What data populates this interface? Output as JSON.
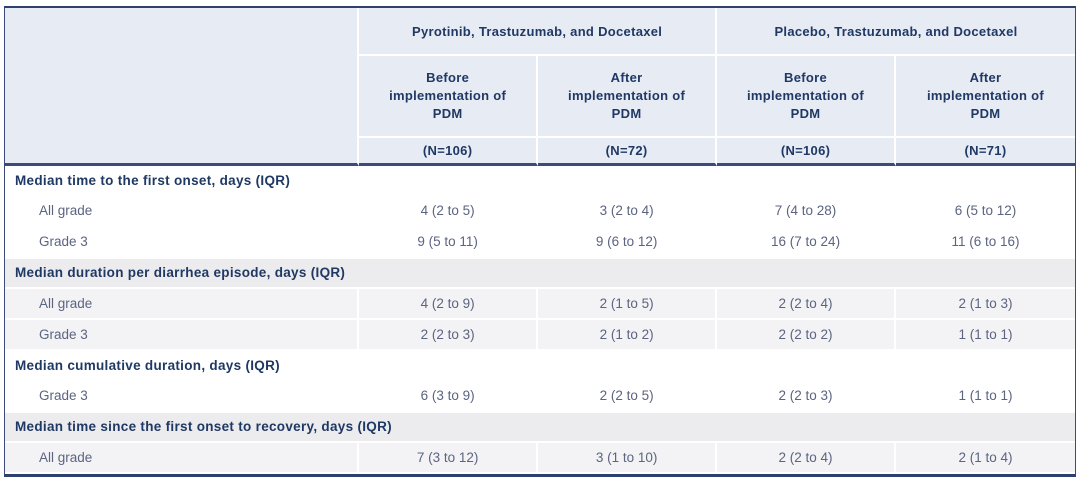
{
  "chart_data": {
    "type": "table",
    "column_groups": [
      "Pyrotinib, Trastuzumab, and Docetaxel",
      "Placebo, Trastuzumab, and Docetaxel"
    ],
    "columns": [
      {
        "label": "Before implementation of PDM",
        "n": "(N=106)"
      },
      {
        "label": "After implementation of PDM",
        "n": "(N=72)"
      },
      {
        "label": "Before implementation of PDM",
        "n": "(N=106)"
      },
      {
        "label": "After implementation of PDM",
        "n": "(N=71)"
      }
    ],
    "sections": [
      {
        "title": "Median time to the first onset, days (IQR)",
        "rows": [
          {
            "label": "All grade",
            "values": [
              "4 (2 to 5)",
              "3 (2 to 4)",
              "7 (4 to 28)",
              "6 (5 to 12)"
            ]
          },
          {
            "label": "Grade 3",
            "values": [
              "9 (5 to 11)",
              "9 (6 to 12)",
              "16 (7 to 24)",
              "11 (6 to 16)"
            ]
          }
        ]
      },
      {
        "title": "Median duration per diarrhea episode, days (IQR)",
        "rows": [
          {
            "label": "All grade",
            "values": [
              "4 (2 to 9)",
              "2 (1 to 5)",
              "2 (2 to 4)",
              "2 (1 to 3)"
            ]
          },
          {
            "label": "Grade 3",
            "values": [
              "2 (2 to 3)",
              "2 (1 to 2)",
              "2 (2 to 2)",
              "1 (1 to 1)"
            ]
          }
        ]
      },
      {
        "title": "Median cumulative duration, days (IQR)",
        "rows": [
          {
            "label": "Grade 3",
            "values": [
              "6 (3 to 9)",
              "2 (2 to 5)",
              "2 (2 to 3)",
              "1 (1 to 1)"
            ]
          }
        ]
      },
      {
        "title": "Median time since the first onset to recovery, days (IQR)",
        "rows": [
          {
            "label": "All grade",
            "values": [
              "7 (3 to 12)",
              "3 (1 to 10)",
              "2 (2 to 4)",
              "2 (1 to 4)"
            ]
          }
        ]
      }
    ]
  },
  "colors": {
    "header_background": "#e7ebf4",
    "header_text_navy": "#1f3864",
    "body_text": "#5b6480",
    "section_shade": "#ececee",
    "row_shade": "#f3f3f5",
    "border_navy": "#2e4070",
    "cell_separator": "#ffffff"
  }
}
